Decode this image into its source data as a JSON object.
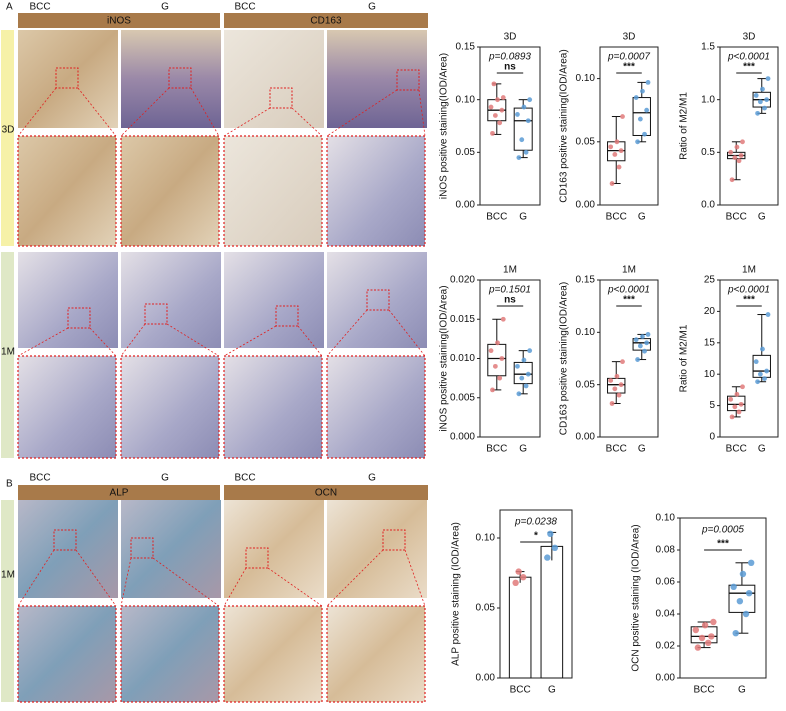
{
  "figure": {
    "panel_a": {
      "label": "A",
      "headers": [
        "BCC",
        "G",
        "BCC",
        "G"
      ],
      "stains": [
        "iNOS",
        "CD163"
      ],
      "rows": [
        "3D",
        "1M"
      ]
    },
    "panel_b": {
      "label": "B",
      "headers": [
        "BCC",
        "G",
        "BCC",
        "G"
      ],
      "stains": [
        "ALP",
        "OCN"
      ],
      "rows": [
        "1M"
      ]
    }
  },
  "chart_data": [
    {
      "type": "box",
      "title": "3D",
      "y_label": "iNOS positive staining(IOD/Area)",
      "p_label": "p=0.0893",
      "significance": "ns",
      "categories": [
        "BCC",
        "G"
      ],
      "boxes": [
        {
          "color": "#e07a7a",
          "min": 0.067,
          "q1": 0.08,
          "median": 0.09,
          "q3": 0.1,
          "max": 0.115,
          "points": [
            0.068,
            0.078,
            0.085,
            0.09,
            0.093,
            0.1,
            0.102,
            0.115
          ]
        },
        {
          "color": "#5b9bd5",
          "min": 0.045,
          "q1": 0.052,
          "median": 0.08,
          "q3": 0.092,
          "max": 0.1,
          "points": [
            0.045,
            0.05,
            0.062,
            0.08,
            0.086,
            0.093,
            0.1
          ]
        }
      ],
      "ylim": [
        0,
        0.15
      ],
      "yticks": [
        {
          "value": 0,
          "label": "0.00"
        },
        {
          "value": 0.05,
          "label": "0.05"
        },
        {
          "value": 0.1,
          "label": "0.10"
        },
        {
          "value": 0.15,
          "label": "0.15"
        }
      ]
    },
    {
      "type": "box",
      "title": "3D",
      "y_label": "CD163 positive staining(IOD/Area)",
      "p_label": "p=0.0007",
      "significance": "***",
      "categories": [
        "BCC",
        "G"
      ],
      "boxes": [
        {
          "color": "#e07a7a",
          "min": 0.017,
          "q1": 0.035,
          "median": 0.043,
          "q3": 0.05,
          "max": 0.07,
          "points": [
            0.017,
            0.03,
            0.04,
            0.043,
            0.046,
            0.05,
            0.07
          ]
        },
        {
          "color": "#5b9bd5",
          "min": 0.05,
          "q1": 0.055,
          "median": 0.073,
          "q3": 0.085,
          "max": 0.097,
          "points": [
            0.05,
            0.056,
            0.068,
            0.075,
            0.085,
            0.09,
            0.097
          ]
        }
      ],
      "ylim": [
        0,
        0.125
      ],
      "yticks": [
        {
          "value": 0,
          "label": "0.00"
        },
        {
          "value": 0.05,
          "label": "0.05"
        },
        {
          "value": 0.1,
          "label": "0.10"
        }
      ]
    },
    {
      "type": "box",
      "title": "3D",
      "y_label": "Ratio of M2/M1",
      "p_label": "p<0.0001",
      "significance": "***",
      "categories": [
        "BCC",
        "G"
      ],
      "boxes": [
        {
          "color": "#e07a7a",
          "min": 0.24,
          "q1": 0.44,
          "median": 0.47,
          "q3": 0.5,
          "max": 0.6,
          "points": [
            0.24,
            0.42,
            0.45,
            0.47,
            0.5,
            0.55,
            0.6
          ]
        },
        {
          "color": "#5b9bd5",
          "min": 0.87,
          "q1": 0.93,
          "median": 1,
          "q3": 1.07,
          "max": 1.2,
          "points": [
            0.87,
            0.92,
            0.98,
            1,
            1.04,
            1.1,
            1.2
          ]
        }
      ],
      "ylim": [
        0,
        1.5
      ],
      "yticks": [
        {
          "value": 0,
          "label": "0.0"
        },
        {
          "value": 0.5,
          "label": "0.5"
        },
        {
          "value": 1,
          "label": "1.0"
        },
        {
          "value": 1.5,
          "label": "1.5"
        }
      ]
    },
    {
      "type": "box",
      "title": "1M",
      "y_label": "iNOS positive staining(IOD/Area)",
      "p_label": "p=0.1501",
      "significance": "ns",
      "categories": [
        "BCC",
        "G"
      ],
      "boxes": [
        {
          "color": "#e07a7a",
          "min": 0.006,
          "q1": 0.0078,
          "median": 0.01,
          "q3": 0.0118,
          "max": 0.015,
          "points": [
            0.006,
            0.0075,
            0.009,
            0.01,
            0.011,
            0.012,
            0.015
          ]
        },
        {
          "color": "#5b9bd5",
          "min": 0.0055,
          "q1": 0.0068,
          "median": 0.008,
          "q3": 0.0095,
          "max": 0.011,
          "points": [
            0.0055,
            0.0065,
            0.0075,
            0.008,
            0.009,
            0.0098,
            0.011
          ]
        }
      ],
      "ylim": [
        0,
        0.02
      ],
      "yticks": [
        {
          "value": 0,
          "label": "0.000"
        },
        {
          "value": 0.005,
          "label": "0.005"
        },
        {
          "value": 0.01,
          "label": "0.010"
        },
        {
          "value": 0.015,
          "label": "0.015"
        },
        {
          "value": 0.02,
          "label": "0.020"
        }
      ]
    },
    {
      "type": "box",
      "title": "1M",
      "y_label": "CD163 positive staining(IOD/Area)",
      "p_label": "p<0.0001",
      "significance": "***",
      "categories": [
        "BCC",
        "G"
      ],
      "boxes": [
        {
          "color": "#e07a7a",
          "min": 0.032,
          "q1": 0.042,
          "median": 0.05,
          "q3": 0.056,
          "max": 0.072,
          "points": [
            0.032,
            0.04,
            0.046,
            0.05,
            0.054,
            0.058,
            0.072
          ]
        },
        {
          "color": "#5b9bd5",
          "min": 0.074,
          "q1": 0.083,
          "median": 0.09,
          "q3": 0.094,
          "max": 0.098,
          "points": [
            0.074,
            0.082,
            0.087,
            0.09,
            0.093,
            0.096,
            0.098
          ]
        }
      ],
      "ylim": [
        0,
        0.15
      ],
      "yticks": [
        {
          "value": 0,
          "label": "0.00"
        },
        {
          "value": 0.05,
          "label": "0.05"
        },
        {
          "value": 0.1,
          "label": "0.10"
        },
        {
          "value": 0.15,
          "label": "0.15"
        }
      ]
    },
    {
      "type": "box",
      "title": "1M",
      "y_label": "Ratio of M2/M1",
      "p_label": "p<0.0001",
      "significance": "***",
      "categories": [
        "BCC",
        "G"
      ],
      "boxes": [
        {
          "color": "#e07a7a",
          "min": 3.2,
          "q1": 4.2,
          "median": 5.2,
          "q3": 6.5,
          "max": 8,
          "points": [
            3.2,
            4,
            4.8,
            5.2,
            6,
            6.8,
            8
          ]
        },
        {
          "color": "#5b9bd5",
          "min": 8.8,
          "q1": 9.5,
          "median": 10.5,
          "q3": 13,
          "max": 19.5,
          "points": [
            8.8,
            9.3,
            10,
            10.5,
            12,
            14,
            19.5
          ]
        }
      ],
      "ylim": [
        0,
        25
      ],
      "yticks": [
        0,
        5,
        10,
        15,
        20,
        25
      ]
    },
    {
      "type": "bar",
      "title": null,
      "y_label": "ALP positive staining (IOD/Area)",
      "p_label": "p=0.0238",
      "significance": "*",
      "categories": [
        "BCC",
        "G"
      ],
      "values": [
        0.072,
        0.094
      ],
      "errors": [
        0.004,
        0.01
      ],
      "colors": [
        "#e07a7a",
        "#5b9bd5"
      ],
      "points": [
        [
          0.068,
          0.072,
          0.076
        ],
        [
          0.086,
          0.093,
          0.103
        ]
      ],
      "ylim": [
        0,
        0.12
      ],
      "yticks": [
        {
          "value": 0,
          "label": "0.00"
        },
        {
          "value": 0.05,
          "label": "0.05"
        },
        {
          "value": 0.1,
          "label": "0.10"
        }
      ]
    },
    {
      "type": "box",
      "title": null,
      "y_label": "OCN positive staining (IOD/Area)",
      "p_label": "p=0.0005",
      "significance": "***",
      "categories": [
        "BCC",
        "G"
      ],
      "boxes": [
        {
          "color": "#e07a7a",
          "min": 0.019,
          "q1": 0.022,
          "median": 0.026,
          "q3": 0.032,
          "max": 0.035,
          "points": [
            0.019,
            0.022,
            0.025,
            0.026,
            0.03,
            0.033,
            0.035
          ]
        },
        {
          "color": "#5b9bd5",
          "min": 0.028,
          "q1": 0.041,
          "median": 0.053,
          "q3": 0.058,
          "max": 0.072,
          "points": [
            0.028,
            0.04,
            0.048,
            0.053,
            0.057,
            0.065,
            0.072
          ]
        }
      ],
      "ylim": [
        0,
        0.1
      ],
      "yticks": [
        {
          "value": 0,
          "label": "0.00"
        },
        {
          "value": 0.02,
          "label": "0.02"
        },
        {
          "value": 0.04,
          "label": "0.04"
        },
        {
          "value": 0.06,
          "label": "0.06"
        },
        {
          "value": 0.08,
          "label": "0.08"
        },
        {
          "value": 0.1,
          "label": "0.10"
        }
      ]
    }
  ]
}
